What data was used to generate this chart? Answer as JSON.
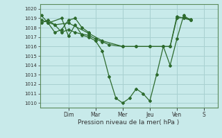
{
  "title": "",
  "xlabel": "Pression niveau de la mer( hPa )",
  "bg_color": "#c8eaea",
  "grid_color": "#a8d0d0",
  "line_color": "#2d6a2d",
  "ylim": [
    1009.5,
    1020.5
  ],
  "yticks": [
    1010,
    1011,
    1012,
    1013,
    1014,
    1015,
    1016,
    1017,
    1018,
    1019,
    1020
  ],
  "day_labels": [
    "Dim",
    "Mar",
    "Mer",
    "Jeu",
    "Ven",
    "S"
  ],
  "day_positions": [
    2.0,
    4.0,
    6.0,
    8.0,
    10.0,
    12.0
  ],
  "xlim": [
    -0.1,
    13.0
  ],
  "lines": [
    {
      "x": [
        0.0,
        0.5,
        1.5,
        2.0,
        2.5,
        3.0,
        3.5,
        4.0,
        4.5,
        5.0,
        5.5,
        6.0,
        6.5,
        7.0,
        7.5,
        8.0,
        8.5,
        9.0,
        9.5,
        10.0,
        10.5,
        11.0
      ],
      "y": [
        1019.3,
        1018.5,
        1019.0,
        1017.1,
        1018.3,
        1017.2,
        1017.0,
        1016.6,
        1015.5,
        1012.8,
        1010.5,
        1010.0,
        1010.5,
        1011.5,
        1011.0,
        1010.2,
        1013.0,
        1016.0,
        1014.0,
        1016.8,
        1019.3,
        1018.8
      ]
    },
    {
      "x": [
        0.0,
        0.5,
        1.0,
        1.5,
        2.0,
        2.5,
        3.0,
        3.5,
        4.0,
        4.5,
        5.0,
        6.0,
        7.0,
        8.0,
        9.0,
        9.5,
        10.0,
        10.5,
        11.0
      ],
      "y": [
        1018.5,
        1018.8,
        1018.3,
        1017.5,
        1017.8,
        1017.5,
        1017.3,
        1017.2,
        1016.8,
        1016.5,
        1016.2,
        1016.0,
        1016.0,
        1016.0,
        1016.0,
        1016.0,
        1019.2,
        1019.0,
        1018.8
      ]
    },
    {
      "x": [
        0.0,
        1.0,
        2.0,
        3.5,
        4.5,
        6.0,
        7.0,
        8.0,
        9.5,
        10.0,
        10.5,
        11.0
      ],
      "y": [
        1018.8,
        1018.3,
        1018.5,
        1017.4,
        1016.6,
        1016.0,
        1016.0,
        1016.0,
        1016.0,
        1019.0,
        1019.1,
        1018.9
      ]
    },
    {
      "x": [
        0.5,
        1.0,
        1.5,
        2.0,
        2.5,
        3.0,
        3.5
      ],
      "y": [
        1018.5,
        1017.5,
        1017.8,
        1018.8,
        1019.0,
        1018.0,
        1017.5
      ]
    }
  ]
}
